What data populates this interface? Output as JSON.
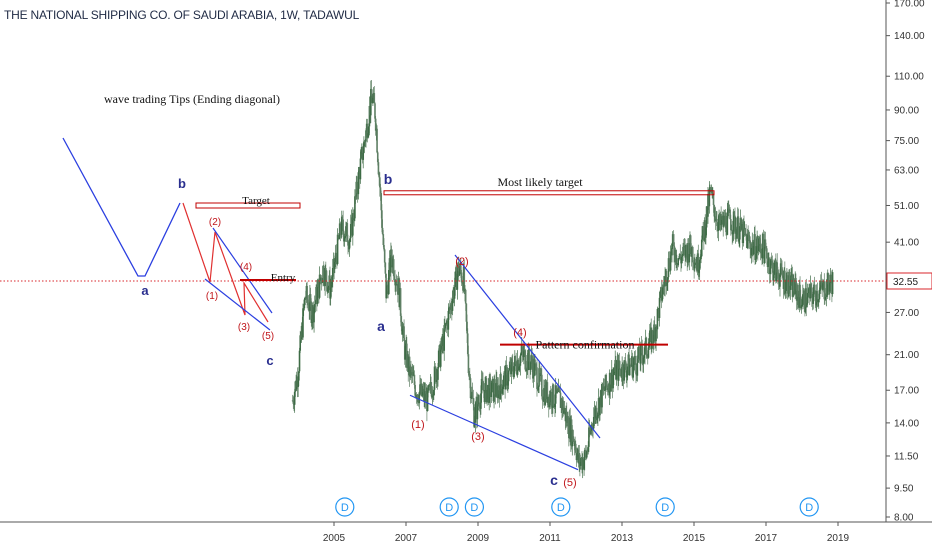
{
  "header": {
    "title": "THE NATIONAL SHIPPING CO. OF SAUDI ARABIA, 1W, TADAWUL"
  },
  "colors": {
    "up": "#26a69a",
    "down": "#ef5350",
    "candle": "#3d6b45",
    "trendline": "#2b3fe0",
    "target": "#c00000",
    "label_red": "#c0161b",
    "label_navy": "#2a2f8f",
    "price_line": "#d8262b"
  },
  "chart_data": {
    "type": "candlestick",
    "title": "THE NATIONAL SHIPPING CO. OF SAUDI ARABIA, 1W, TADAWUL",
    "scale": "log",
    "ylim": [
      8.0,
      170.0
    ],
    "xlim": [
      2003.2,
      2019.6
    ],
    "y_ticks": [
      "170.00",
      "140.00",
      "110.00",
      "90.00",
      "75.00",
      "63.00",
      "51.00",
      "41.00",
      "33.00",
      "27.00",
      "21.00",
      "17.00",
      "14.00",
      "11.50",
      "9.50",
      "8.00"
    ],
    "y_tick_values": [
      170,
      140,
      110,
      90,
      75,
      63,
      51,
      41,
      33,
      27,
      21,
      17,
      14,
      11.5,
      9.5,
      8
    ],
    "x_ticks": [
      "2005",
      "2007",
      "2009",
      "2011",
      "2013",
      "2015",
      "2017",
      "2019"
    ],
    "x_tick_values": [
      2005,
      2007,
      2009,
      2011,
      2013,
      2015,
      2017,
      2019
    ],
    "last_price": {
      "label": "32.55",
      "value": 32.55
    },
    "price_path": [
      [
        2003.85,
        16.0
      ],
      [
        2004.0,
        19.0
      ],
      [
        2004.2,
        30.0
      ],
      [
        2004.4,
        27.0
      ],
      [
        2004.7,
        35.0
      ],
      [
        2004.9,
        31.0
      ],
      [
        2005.2,
        45.0
      ],
      [
        2005.45,
        42.0
      ],
      [
        2005.7,
        62.0
      ],
      [
        2005.9,
        80.0
      ],
      [
        2006.05,
        98.0
      ],
      [
        2006.15,
        88.0
      ],
      [
        2006.3,
        52.0
      ],
      [
        2006.45,
        30.0
      ],
      [
        2006.6,
        38.0
      ],
      [
        2006.8,
        31.0
      ],
      [
        2006.95,
        22.0
      ],
      [
        2007.1,
        19.0
      ],
      [
        2007.3,
        17.0
      ],
      [
        2007.6,
        16.0
      ],
      [
        2007.8,
        18.5
      ],
      [
        2008.0,
        22.0
      ],
      [
        2008.2,
        27.0
      ],
      [
        2008.45,
        35.0
      ],
      [
        2008.6,
        33.0
      ],
      [
        2008.75,
        19.0
      ],
      [
        2008.9,
        14.5
      ],
      [
        2009.1,
        17.0
      ],
      [
        2009.5,
        17.0
      ],
      [
        2009.9,
        19.0
      ],
      [
        2010.2,
        21.0
      ],
      [
        2010.5,
        20.0
      ],
      [
        2010.8,
        17.0
      ],
      [
        2011.0,
        16.5
      ],
      [
        2011.3,
        16.0
      ],
      [
        2011.5,
        14.0
      ],
      [
        2011.7,
        12.5
      ],
      [
        2011.8,
        11.0
      ],
      [
        2012.0,
        11.5
      ],
      [
        2012.2,
        14.5
      ],
      [
        2012.5,
        17.0
      ],
      [
        2012.8,
        19.0
      ],
      [
        2013.1,
        19.5
      ],
      [
        2013.4,
        20.0
      ],
      [
        2013.7,
        22.0
      ],
      [
        2013.9,
        24.0
      ],
      [
        2014.1,
        30.0
      ],
      [
        2014.4,
        40.0
      ],
      [
        2014.6,
        37.0
      ],
      [
        2014.9,
        40.0
      ],
      [
        2015.1,
        36.0
      ],
      [
        2015.3,
        45.0
      ],
      [
        2015.45,
        55.0
      ],
      [
        2015.7,
        45.0
      ],
      [
        2016.0,
        47.0
      ],
      [
        2016.3,
        44.0
      ],
      [
        2016.6,
        40.0
      ],
      [
        2016.9,
        40.0
      ],
      [
        2017.2,
        35.0
      ],
      [
        2017.5,
        33.0
      ],
      [
        2017.8,
        31.0
      ],
      [
        2018.0,
        29.0
      ],
      [
        2018.3,
        30.0
      ],
      [
        2018.6,
        31.0
      ],
      [
        2018.85,
        32.55
      ]
    ],
    "annotations": [
      {
        "text": "Most likely target",
        "kind": "label"
      },
      {
        "text": "Pattern confirmation",
        "kind": "label"
      },
      {
        "text": "b",
        "kind": "wave"
      },
      {
        "text": "a",
        "kind": "wave"
      },
      {
        "text": "c",
        "kind": "wave"
      },
      {
        "text": "(1)",
        "kind": "wave"
      },
      {
        "text": "(2)",
        "kind": "wave"
      },
      {
        "text": "(3)",
        "kind": "wave"
      },
      {
        "text": "(4)",
        "kind": "wave"
      },
      {
        "text": "(5)",
        "kind": "wave"
      }
    ],
    "dividend_markers": [
      "D",
      "D",
      "D",
      "D",
      "D",
      "D"
    ],
    "dividend_years": [
      2005.3,
      2008.2,
      2008.9,
      2011.3,
      2014.2,
      2018.2
    ]
  },
  "tips": {
    "title": "wave trading Tips  (Ending diagonal)",
    "target_label": "Target",
    "entry_label": "Entry",
    "waves": {
      "a": "a",
      "b": "b",
      "c": "c",
      "w1": "(1)",
      "w2": "(2)",
      "w3": "(3)",
      "w4": "(4)",
      "w5": "(5)"
    }
  }
}
